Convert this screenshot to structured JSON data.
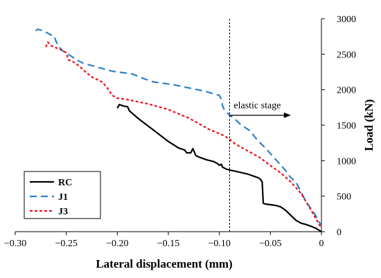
{
  "chart_data": {
    "type": "line",
    "xlabel": "Lateral displacement (mm)",
    "ylabel": "Load (kN)",
    "xlim": [
      -0.3,
      0
    ],
    "ylim": [
      0,
      3000
    ],
    "xticks": [
      -0.3,
      -0.25,
      -0.2,
      -0.15,
      -0.1,
      -0.05,
      0
    ],
    "xtick_labels": [
      "−0.30",
      "−0.25",
      "−0.20",
      "−0.15",
      "−0.10",
      "−0.05",
      "0"
    ],
    "yticks": [
      0,
      500,
      1000,
      1500,
      2000,
      2500,
      3000
    ],
    "ytick_labels": [
      "0",
      "500",
      "1000",
      "1500",
      "2000",
      "2500",
      "3000"
    ],
    "y_axis_side": "right",
    "grid": false,
    "legend_position": "bottom-left",
    "annotation": {
      "text": "elastic stage",
      "vline_x": -0.09,
      "arrow_from_x": -0.09,
      "arrow_to_x": -0.03,
      "arrow_y": 1640
    },
    "series": [
      {
        "name": "RC",
        "color": "#000000",
        "dash": "solid",
        "points": [
          [
            -0.2,
            1740
          ],
          [
            -0.198,
            1790
          ],
          [
            -0.194,
            1770
          ],
          [
            -0.19,
            1760
          ],
          [
            -0.188,
            1700
          ],
          [
            -0.18,
            1600
          ],
          [
            -0.17,
            1490
          ],
          [
            -0.16,
            1380
          ],
          [
            -0.15,
            1270
          ],
          [
            -0.14,
            1180
          ],
          [
            -0.134,
            1150
          ],
          [
            -0.132,
            1110
          ],
          [
            -0.128,
            1110
          ],
          [
            -0.126,
            1170
          ],
          [
            -0.123,
            1070
          ],
          [
            -0.118,
            1040
          ],
          [
            -0.112,
            1010
          ],
          [
            -0.106,
            990
          ],
          [
            -0.102,
            960
          ],
          [
            -0.1,
            935
          ],
          [
            -0.098,
            950
          ],
          [
            -0.097,
            910
          ],
          [
            -0.093,
            880
          ],
          [
            -0.089,
            865
          ],
          [
            -0.084,
            850
          ],
          [
            -0.078,
            830
          ],
          [
            -0.072,
            810
          ],
          [
            -0.066,
            780
          ],
          [
            -0.062,
            760
          ],
          [
            -0.06,
            740
          ],
          [
            -0.058,
            700
          ],
          [
            -0.057,
            400
          ],
          [
            -0.055,
            390
          ],
          [
            -0.05,
            380
          ],
          [
            -0.045,
            370
          ],
          [
            -0.04,
            350
          ],
          [
            -0.035,
            300
          ],
          [
            -0.03,
            230
          ],
          [
            -0.025,
            160
          ],
          [
            -0.02,
            120
          ],
          [
            -0.015,
            100
          ],
          [
            -0.01,
            75
          ],
          [
            -0.005,
            45
          ],
          [
            0,
            0
          ]
        ]
      },
      {
        "name": "J1",
        "color": "#2e7fc7",
        "dash": "long-dash",
        "points": [
          [
            -0.28,
            2830
          ],
          [
            -0.278,
            2850
          ],
          [
            -0.275,
            2840
          ],
          [
            -0.27,
            2810
          ],
          [
            -0.265,
            2770
          ],
          [
            -0.262,
            2760
          ],
          [
            -0.26,
            2680
          ],
          [
            -0.257,
            2600
          ],
          [
            -0.253,
            2540
          ],
          [
            -0.247,
            2490
          ],
          [
            -0.24,
            2420
          ],
          [
            -0.233,
            2370
          ],
          [
            -0.225,
            2340
          ],
          [
            -0.215,
            2300
          ],
          [
            -0.205,
            2260
          ],
          [
            -0.195,
            2240
          ],
          [
            -0.185,
            2220
          ],
          [
            -0.175,
            2160
          ],
          [
            -0.165,
            2110
          ],
          [
            -0.155,
            2090
          ],
          [
            -0.145,
            2070
          ],
          [
            -0.135,
            2040
          ],
          [
            -0.125,
            2010
          ],
          [
            -0.115,
            1980
          ],
          [
            -0.105,
            1940
          ],
          [
            -0.1,
            1920
          ],
          [
            -0.098,
            1860
          ],
          [
            -0.097,
            1780
          ],
          [
            -0.095,
            1710
          ],
          [
            -0.09,
            1640
          ],
          [
            -0.085,
            1590
          ],
          [
            -0.08,
            1520
          ],
          [
            -0.075,
            1470
          ],
          [
            -0.07,
            1420
          ],
          [
            -0.065,
            1330
          ],
          [
            -0.06,
            1250
          ],
          [
            -0.055,
            1180
          ],
          [
            -0.05,
            1100
          ],
          [
            -0.045,
            1020
          ],
          [
            -0.04,
            940
          ],
          [
            -0.035,
            860
          ],
          [
            -0.03,
            760
          ],
          [
            -0.025,
            700
          ],
          [
            -0.02,
            560
          ],
          [
            -0.015,
            420
          ],
          [
            -0.01,
            320
          ],
          [
            -0.005,
            210
          ],
          [
            0,
            80
          ]
        ]
      },
      {
        "name": "J3",
        "color": "#e8141e",
        "dash": "short-dash",
        "points": [
          [
            -0.27,
            2600
          ],
          [
            -0.268,
            2670
          ],
          [
            -0.265,
            2620
          ],
          [
            -0.26,
            2590
          ],
          [
            -0.255,
            2560
          ],
          [
            -0.25,
            2520
          ],
          [
            -0.248,
            2420
          ],
          [
            -0.243,
            2390
          ],
          [
            -0.237,
            2330
          ],
          [
            -0.232,
            2260
          ],
          [
            -0.225,
            2180
          ],
          [
            -0.215,
            2110
          ],
          [
            -0.21,
            2030
          ],
          [
            -0.205,
            1920
          ],
          [
            -0.2,
            1880
          ],
          [
            -0.19,
            1860
          ],
          [
            -0.18,
            1830
          ],
          [
            -0.17,
            1800
          ],
          [
            -0.16,
            1760
          ],
          [
            -0.15,
            1720
          ],
          [
            -0.14,
            1660
          ],
          [
            -0.13,
            1600
          ],
          [
            -0.12,
            1520
          ],
          [
            -0.11,
            1440
          ],
          [
            -0.1,
            1380
          ],
          [
            -0.095,
            1350
          ],
          [
            -0.09,
            1300
          ],
          [
            -0.085,
            1240
          ],
          [
            -0.08,
            1200
          ],
          [
            -0.07,
            1120
          ],
          [
            -0.06,
            1040
          ],
          [
            -0.05,
            930
          ],
          [
            -0.04,
            830
          ],
          [
            -0.03,
            700
          ],
          [
            -0.025,
            620
          ],
          [
            -0.02,
            540
          ],
          [
            -0.015,
            420
          ],
          [
            -0.01,
            300
          ],
          [
            -0.005,
            170
          ],
          [
            0,
            50
          ]
        ]
      }
    ]
  }
}
